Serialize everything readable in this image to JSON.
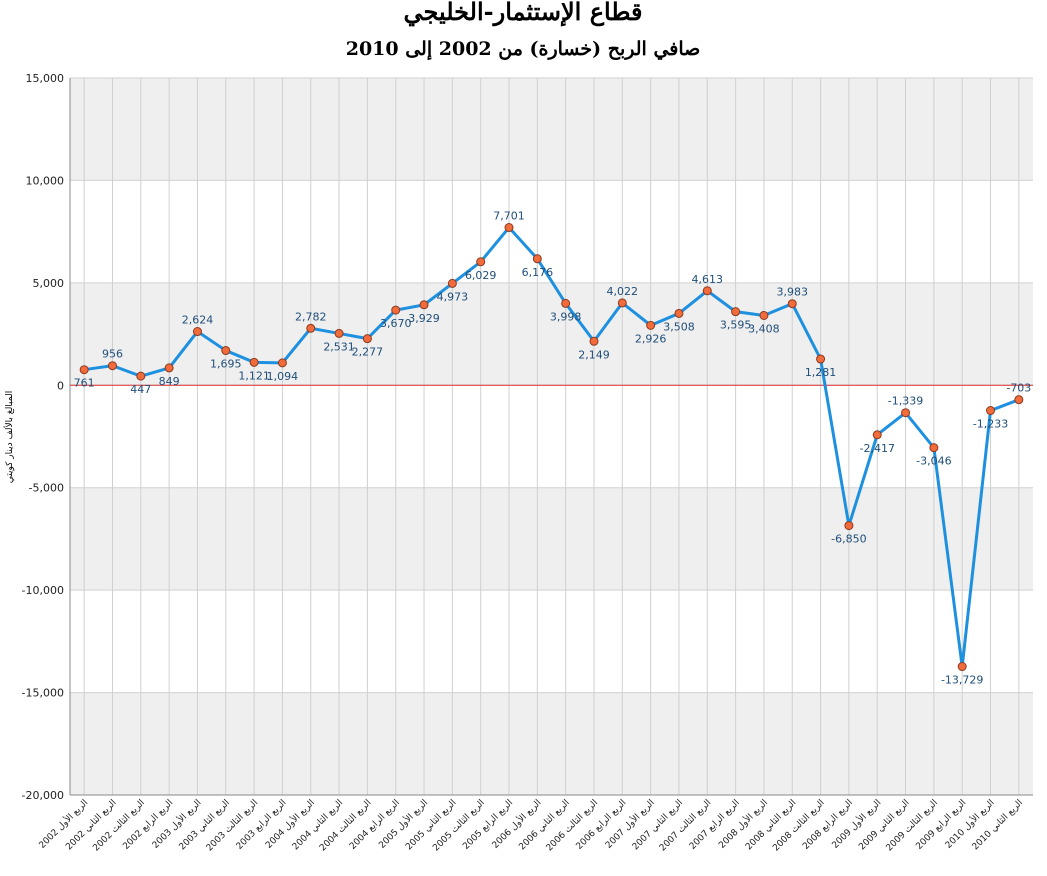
{
  "chart_data": {
    "type": "line",
    "title": "قطاع الإستثمار-الخليجي",
    "subtitle": "صافي الربح (خسارة) من 2002 إلى 2010",
    "y_label": "المبالغ بالألف دينار كويتي",
    "categories": [
      "2002 الربع الأول",
      "2002 الربع الثاني",
      "2002 الربع الثالث",
      "2002 الربع الرابع",
      "2003 الربع الأول",
      "2003 الربع الثاني",
      "2003 الربع الثالث",
      "2003 الربع الرابع",
      "2004 الربع الأول",
      "2004 الربع الثاني",
      "2004 الربع الثالث",
      "2004 الربع الرابع",
      "2005 الربع الأول",
      "2005 الربع الثاني",
      "2005 الربع الثالث",
      "2005 الربع الرابع",
      "2006 الربع الأول",
      "2006 الربع الثاني",
      "2006 الربع الثالث",
      "2006 الربع الرابع",
      "2007 الربع الأول",
      "2007 الربع الثاني",
      "2007 الربع الثالث",
      "2007 الربع الرابع",
      "2008 الربع الأول",
      "2008 الربع الثاني",
      "2008 الربع الثالث",
      "2008 الربع الرابع",
      "2009 الربع الأول",
      "2009 الربع الثاني",
      "2009 الربع الثالث",
      "2009 الربع الرابع",
      "2010 الربع الأول",
      "2010 الربع الثاني"
    ],
    "series": [
      {
        "color": "#1e90e0",
        "marker_color": "#f26b3a",
        "values": [
          761,
          956,
          447,
          849,
          2624,
          1695,
          1121,
          1094,
          2782,
          2531,
          2277,
          3670,
          3929,
          4973,
          6029,
          7701,
          6176,
          3998,
          2149,
          4022,
          2926,
          3508,
          4613,
          3595,
          3408,
          3983,
          1281,
          -6850,
          -2417,
          -1339,
          -3046,
          -13729,
          -1233,
          -703
        ],
        "value_labels": [
          "761",
          "956",
          "447",
          "849",
          "2,624",
          "1,695",
          "1,121",
          "1,094",
          "2,782",
          "2,531",
          "2,277",
          "3,670",
          "3,929",
          "4,973",
          "6,029",
          "7,701",
          "6,176",
          "3,998",
          "2,149",
          "4,022",
          "2,926",
          "3,508",
          "4,613",
          "3,595",
          "3,408",
          "3,983",
          "1,281",
          "-6,850",
          "-2,417",
          "-1,339",
          "-3,046",
          "-13,729",
          "-1,233",
          "-703"
        ]
      }
    ],
    "ylim": [
      -20000,
      15000
    ],
    "yticks": [
      {
        "value": -20000,
        "label": "-20,000"
      },
      {
        "value": -15000,
        "label": "-15,000"
      },
      {
        "value": -10000,
        "label": "-10,000"
      },
      {
        "value": -5000,
        "label": "-5,000"
      },
      0,
      {
        "value": 5000,
        "label": "5,000"
      },
      {
        "value": 10000,
        "label": "10,000"
      },
      {
        "value": 15000,
        "label": "15,000"
      }
    ],
    "zero_line_color": "#e03030",
    "grid": true
  }
}
